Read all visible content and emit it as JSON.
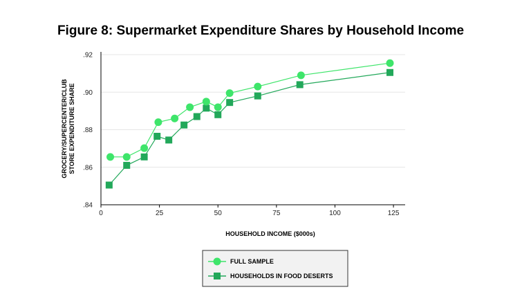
{
  "chart_data": {
    "type": "line",
    "title": "Figure 8: Supermarket Expenditure Shares by Household Income",
    "xlabel": "HOUSEHOLD INCOME ($000s)",
    "ylabel_lines": [
      "GROCERY/SUPERCENTER/CLUB",
      "STORE EXPENDITURE SHARE"
    ],
    "xlim": [
      0,
      130
    ],
    "ylim": [
      0.84,
      0.92
    ],
    "x_ticks": [
      0,
      25,
      50,
      75,
      100,
      125
    ],
    "y_ticks": [
      ".84",
      ".86",
      ".88",
      ".90",
      ".92"
    ],
    "grid": "horizontal",
    "legend_position": "bottom-center",
    "series": [
      {
        "name": "FULL SAMPLE",
        "color": "#3ee56a",
        "marker": "circle",
        "x": [
          4,
          11,
          18.5,
          24.5,
          31.5,
          38,
          45,
          50,
          55,
          67,
          85.5,
          123.5
        ],
        "y": [
          0.8655,
          0.8655,
          0.8702,
          0.884,
          0.886,
          0.892,
          0.895,
          0.892,
          0.8995,
          0.903,
          0.909,
          0.9155
        ]
      },
      {
        "name": "HOUSEHOLDS IN FOOD DESERTS",
        "color": "#22a85a",
        "marker": "square",
        "x": [
          3.5,
          11,
          18.5,
          24,
          29,
          35.5,
          41,
          45,
          50,
          55,
          67,
          85,
          123.5
        ],
        "y": [
          0.8505,
          0.861,
          0.8655,
          0.8765,
          0.8745,
          0.8825,
          0.887,
          0.8915,
          0.888,
          0.8945,
          0.898,
          0.904,
          0.9105
        ]
      }
    ]
  }
}
